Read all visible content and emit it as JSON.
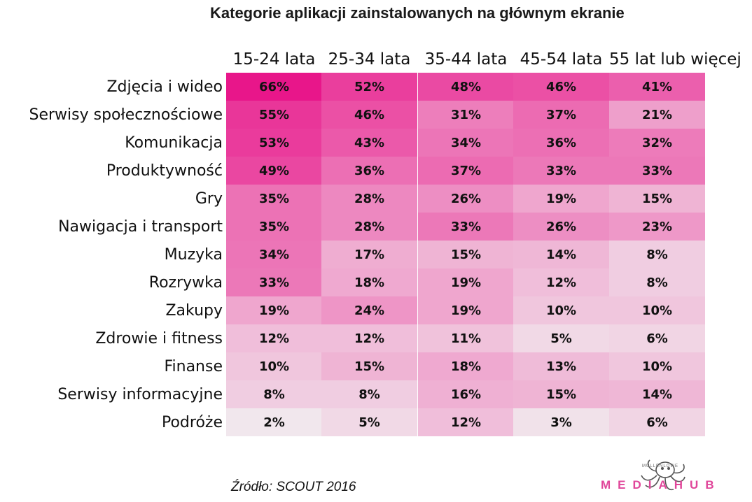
{
  "chart_data": {
    "type": "heatmap",
    "title": "Kategorie aplikacji zainstalowanych na głównym ekranie",
    "columns": [
      "15-24 lata",
      "25-34 lata",
      "35-44 lata",
      "45-54 lata",
      "55 lat lub więcej"
    ],
    "rows": [
      {
        "label": "Zdjęcia i wideo",
        "values": [
          66,
          52,
          48,
          46,
          41
        ]
      },
      {
        "label": "Serwisy społecznościowe",
        "values": [
          55,
          46,
          31,
          37,
          21
        ]
      },
      {
        "label": "Komunikacja",
        "values": [
          53,
          43,
          34,
          36,
          32
        ]
      },
      {
        "label": "Produktywność",
        "values": [
          49,
          36,
          37,
          33,
          33
        ]
      },
      {
        "label": "Gry",
        "values": [
          35,
          28,
          26,
          19,
          15
        ]
      },
      {
        "label": "Nawigacja i transport",
        "values": [
          35,
          28,
          33,
          26,
          23
        ]
      },
      {
        "label": "Muzyka",
        "values": [
          34,
          17,
          15,
          14,
          8
        ]
      },
      {
        "label": "Rozrywka",
        "values": [
          33,
          18,
          19,
          12,
          8
        ]
      },
      {
        "label": "Zakupy",
        "values": [
          19,
          24,
          19,
          10,
          10
        ]
      },
      {
        "label": "Zdrowie i fitness",
        "values": [
          12,
          12,
          11,
          5,
          6
        ]
      },
      {
        "label": "Finanse",
        "values": [
          10,
          15,
          18,
          13,
          10
        ]
      },
      {
        "label": "Serwisy informacyjne",
        "values": [
          8,
          8,
          16,
          15,
          14
        ]
      },
      {
        "label": "Podróże",
        "values": [
          2,
          5,
          12,
          3,
          6
        ]
      }
    ],
    "value_suffix": "%",
    "color_low": "#f2f2f2",
    "color_high": "#e8168a"
  },
  "source": "Źródło: SCOUT 2016",
  "logo": {
    "text": "MEDIAHUB",
    "small_text": "MULLENLOWE"
  }
}
